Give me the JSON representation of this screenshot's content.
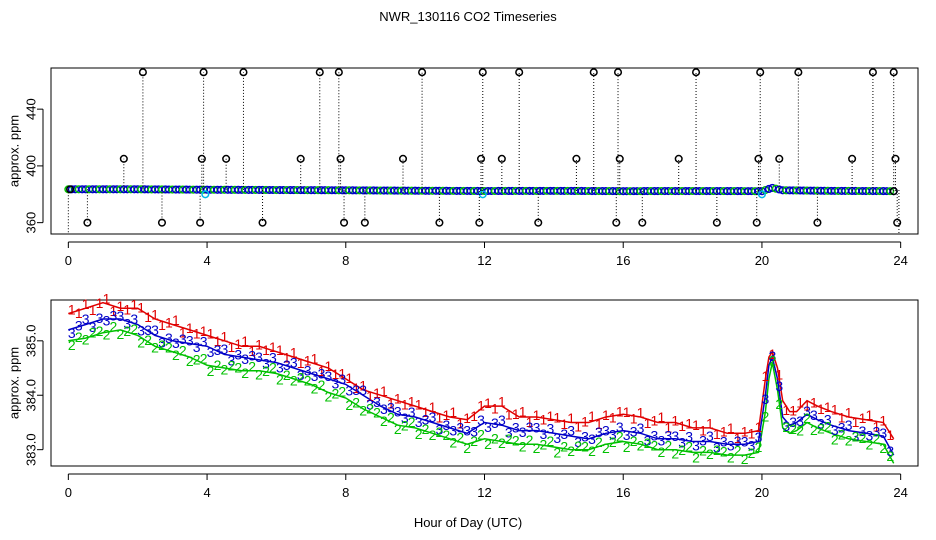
{
  "page": {
    "title": "NWR_130116  CO2 Timeseries",
    "xlabel": "Hour of Day (UTC)"
  },
  "colors": {
    "red": "#e00000",
    "green": "#00c000",
    "blue": "#0000c8",
    "cyan": "#00b8e8",
    "black": "#000000"
  },
  "chart_data": [
    {
      "type": "scatter",
      "title": "NWR_130116  CO2 Timeseries",
      "xlabel": "Hour of Day (UTC)",
      "ylabel": "approx. ppm",
      "xlim": [
        -0.5,
        24.5
      ],
      "ylim": [
        352,
        469
      ],
      "xticks": [
        "0",
        "4",
        "8",
        "12",
        "16",
        "20",
        "24"
      ],
      "yticks": [
        "360",
        "400",
        "440"
      ],
      "baseline": [
        [
          0,
          383.5
        ],
        [
          2,
          383.5
        ],
        [
          4,
          383.2
        ],
        [
          6,
          383.0
        ],
        [
          8,
          382.8
        ],
        [
          10,
          382.5
        ],
        [
          12,
          382.3
        ],
        [
          14,
          382.4
        ],
        [
          16,
          382.2
        ],
        [
          18,
          382.3
        ],
        [
          20,
          382.2
        ],
        [
          20.3,
          384.5
        ],
        [
          20.6,
          382.8
        ],
        [
          22,
          382.4
        ],
        [
          23.8,
          382.2
        ]
      ],
      "spikes_high": [
        2.15,
        3.9,
        5.05,
        7.25,
        7.8,
        10.2,
        11.95,
        13.0,
        15.15,
        15.85,
        18.1,
        19.95,
        21.05,
        23.2,
        23.8
      ],
      "spikes_mid": [
        1.6,
        3.85,
        4.55,
        6.7,
        7.85,
        9.65,
        11.9,
        12.5,
        14.65,
        15.9,
        17.6,
        19.9,
        20.5,
        22.6,
        23.85
      ],
      "spikes_low": [
        0.55,
        2.7,
        3.8,
        5.6,
        7.95,
        8.55,
        10.7,
        11.85,
        13.55,
        15.8,
        16.55,
        18.7,
        19.85,
        21.6,
        23.9
      ],
      "spike_values": {
        "high": 466,
        "mid": 405,
        "low": 360
      },
      "cyan_markers": [
        [
          3.95,
          380
        ],
        [
          11.95,
          380
        ],
        [
          20.0,
          380
        ]
      ],
      "series": [
        {
          "name": "1",
          "color": "#e00000",
          "points": [
            [
              0,
              385.5
            ],
            [
              0.5,
              385.6
            ],
            [
              1,
              385.7
            ],
            [
              1.5,
              385.6
            ],
            [
              2,
              385.6
            ],
            [
              2.5,
              385.4
            ],
            [
              3,
              385.3
            ],
            [
              3.5,
              385.2
            ],
            [
              4,
              385.1
            ],
            [
              4.5,
              385.0
            ],
            [
              5,
              384.9
            ],
            [
              5.5,
              384.9
            ],
            [
              6,
              384.8
            ],
            [
              6.5,
              384.7
            ],
            [
              7,
              384.6
            ],
            [
              7.5,
              384.5
            ],
            [
              8,
              384.3
            ],
            [
              8.5,
              384.1
            ],
            [
              9,
              384.0
            ],
            [
              9.5,
              383.9
            ],
            [
              10,
              383.8
            ],
            [
              10.5,
              383.7
            ],
            [
              11,
              383.6
            ],
            [
              11.5,
              383.55
            ],
            [
              12,
              383.8
            ],
            [
              12.5,
              383.8
            ],
            [
              13,
              383.6
            ],
            [
              13.5,
              383.6
            ],
            [
              14,
              383.55
            ],
            [
              14.5,
              383.5
            ],
            [
              15,
              383.5
            ],
            [
              15.5,
              383.6
            ],
            [
              16,
              383.65
            ],
            [
              16.5,
              383.6
            ],
            [
              17,
              383.5
            ],
            [
              17.5,
              383.5
            ],
            [
              18,
              383.4
            ],
            [
              18.5,
              383.4
            ],
            [
              19,
              383.3
            ],
            [
              19.5,
              383.3
            ],
            [
              19.9,
              383.35
            ],
            [
              20.1,
              384.3
            ],
            [
              20.2,
              384.7
            ],
            [
              20.3,
              384.8
            ],
            [
              20.45,
              384.5
            ],
            [
              20.6,
              383.9
            ],
            [
              20.8,
              383.7
            ],
            [
              21,
              383.7
            ],
            [
              21.3,
              383.9
            ],
            [
              21.6,
              383.8
            ],
            [
              22,
              383.7
            ],
            [
              22.5,
              383.6
            ],
            [
              23,
              383.55
            ],
            [
              23.5,
              383.5
            ],
            [
              23.8,
              383.2
            ]
          ]
        },
        {
          "name": "3",
          "color": "#0000c8",
          "points": [
            [
              0,
              385.2
            ],
            [
              0.5,
              385.3
            ],
            [
              1,
              385.4
            ],
            [
              1.5,
              385.4
            ],
            [
              2,
              385.3
            ],
            [
              2.5,
              385.1
            ],
            [
              3,
              385.0
            ],
            [
              3.5,
              384.95
            ],
            [
              4,
              384.9
            ],
            [
              4.5,
              384.75
            ],
            [
              5,
              384.7
            ],
            [
              5.5,
              384.65
            ],
            [
              6,
              384.6
            ],
            [
              6.5,
              384.5
            ],
            [
              7,
              384.4
            ],
            [
              7.5,
              384.3
            ],
            [
              8,
              384.2
            ],
            [
              8.5,
              384.0
            ],
            [
              9,
              383.8
            ],
            [
              9.5,
              383.65
            ],
            [
              10,
              383.6
            ],
            [
              10.5,
              383.5
            ],
            [
              11,
              383.4
            ],
            [
              11.5,
              383.3
            ],
            [
              12,
              383.5
            ],
            [
              12.5,
              383.45
            ],
            [
              13,
              383.35
            ],
            [
              13.5,
              383.35
            ],
            [
              14,
              383.3
            ],
            [
              14.5,
              383.25
            ],
            [
              15,
              383.2
            ],
            [
              15.5,
              383.3
            ],
            [
              16,
              383.35
            ],
            [
              16.5,
              383.3
            ],
            [
              17,
              383.2
            ],
            [
              17.5,
              383.2
            ],
            [
              18,
              383.15
            ],
            [
              18.5,
              383.15
            ],
            [
              19,
              383.1
            ],
            [
              19.5,
              383.1
            ],
            [
              19.9,
              383.15
            ],
            [
              20.1,
              384.0
            ],
            [
              20.2,
              384.55
            ],
            [
              20.3,
              384.7
            ],
            [
              20.45,
              384.3
            ],
            [
              20.6,
              383.6
            ],
            [
              20.8,
              383.45
            ],
            [
              21,
              383.5
            ],
            [
              21.3,
              383.65
            ],
            [
              21.6,
              383.55
            ],
            [
              22,
              383.45
            ],
            [
              22.5,
              383.35
            ],
            [
              23,
              383.3
            ],
            [
              23.5,
              383.25
            ],
            [
              23.8,
              382.9
            ]
          ]
        },
        {
          "name": "2",
          "color": "#00c000",
          "points": [
            [
              0,
              385.0
            ],
            [
              0.5,
              385.05
            ],
            [
              1,
              385.15
            ],
            [
              1.5,
              385.2
            ],
            [
              2,
              385.1
            ],
            [
              2.5,
              384.9
            ],
            [
              3,
              384.8
            ],
            [
              3.5,
              384.7
            ],
            [
              4,
              384.55
            ],
            [
              4.5,
              384.5
            ],
            [
              5,
              384.45
            ],
            [
              5.5,
              384.45
            ],
            [
              6,
              384.4
            ],
            [
              6.5,
              384.3
            ],
            [
              7,
              384.2
            ],
            [
              7.5,
              384.05
            ],
            [
              8,
              383.95
            ],
            [
              8.5,
              383.75
            ],
            [
              9,
              383.6
            ],
            [
              9.5,
              383.45
            ],
            [
              10,
              383.4
            ],
            [
              10.5,
              383.3
            ],
            [
              11,
              383.2
            ],
            [
              11.5,
              383.1
            ],
            [
              12,
              383.2
            ],
            [
              12.5,
              383.15
            ],
            [
              13,
              383.1
            ],
            [
              13.5,
              383.1
            ],
            [
              14,
              383.05
            ],
            [
              14.5,
              383.0
            ],
            [
              15,
              383.0
            ],
            [
              15.5,
              383.1
            ],
            [
              16,
              383.15
            ],
            [
              16.5,
              383.1
            ],
            [
              17,
              383.0
            ],
            [
              17.5,
              383.0
            ],
            [
              18,
              382.95
            ],
            [
              18.5,
              382.95
            ],
            [
              19,
              382.9
            ],
            [
              19.5,
              382.9
            ],
            [
              19.9,
              382.95
            ],
            [
              20.1,
              383.7
            ],
            [
              20.2,
              384.3
            ],
            [
              20.3,
              384.6
            ],
            [
              20.45,
              384.1
            ],
            [
              20.6,
              383.4
            ],
            [
              20.8,
              383.3
            ],
            [
              21,
              383.35
            ],
            [
              21.3,
              383.5
            ],
            [
              21.6,
              383.4
            ],
            [
              22,
              383.3
            ],
            [
              22.5,
              383.2
            ],
            [
              23,
              383.15
            ],
            [
              23.5,
              383.1
            ],
            [
              23.8,
              382.75
            ]
          ]
        }
      ]
    },
    {
      "type": "line",
      "xlabel": "Hour of Day (UTC)",
      "ylabel": "approx. ppm",
      "xlim": [
        -0.5,
        24.5
      ],
      "ylim": [
        382.7,
        385.75
      ],
      "xticks": [
        "0",
        "4",
        "8",
        "12",
        "16",
        "20",
        "24"
      ],
      "yticks": [
        "383.0",
        "384.0",
        "385.0"
      ],
      "note": "series values identical to upper panel series"
    }
  ]
}
